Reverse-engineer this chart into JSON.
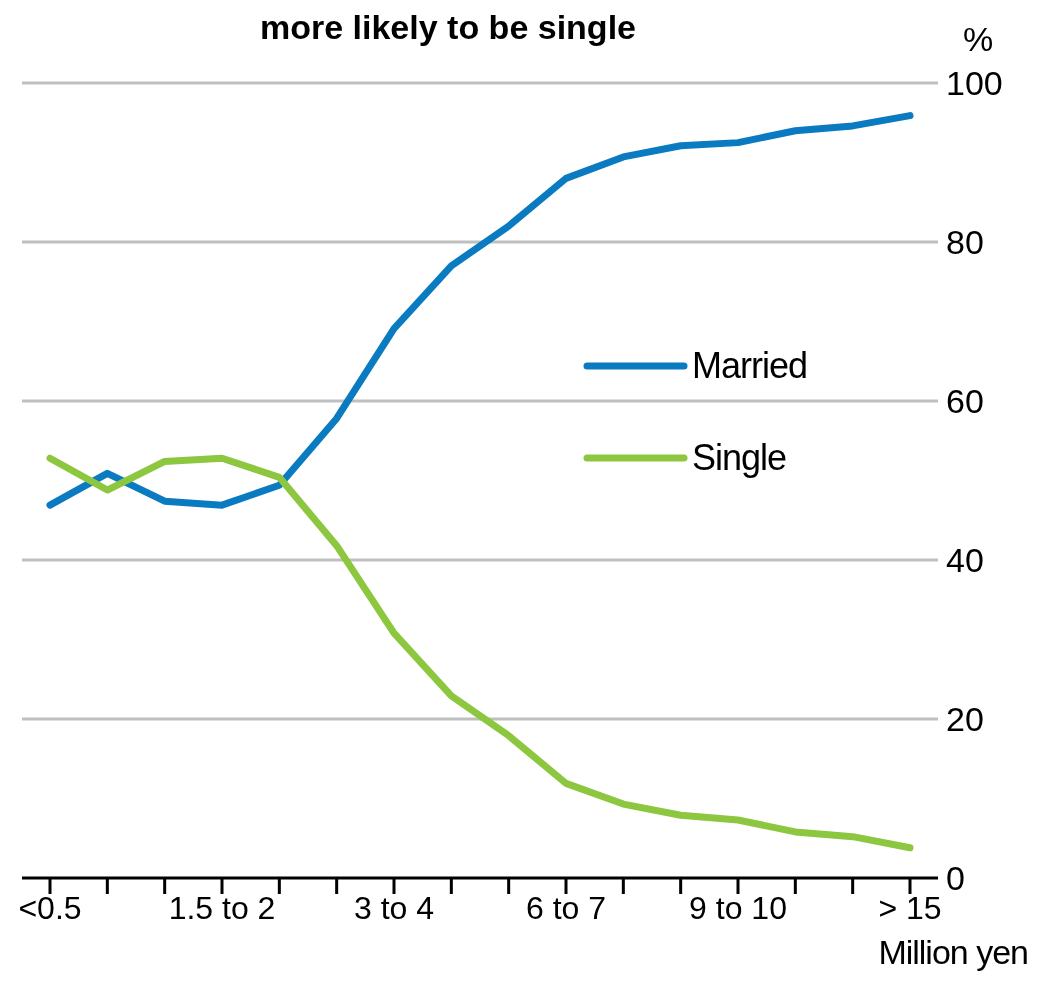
{
  "chart_data": {
    "type": "line",
    "title": "more likely to be single",
    "ylabel": "%",
    "xlabel": "Million yen",
    "categories": [
      "<0.5",
      null,
      null,
      "1.5 to 2",
      null,
      null,
      "3 to 4",
      null,
      null,
      "6 to 7",
      null,
      null,
      "9 to 10",
      null,
      null,
      "> 15"
    ],
    "series": [
      {
        "name": "Married",
        "color": "#0a7bc1",
        "values": [
          46.9,
          50.9,
          47.4,
          46.9,
          49.4,
          57.8,
          69.1,
          77.0,
          82.0,
          88.0,
          90.7,
          92.1,
          92.5,
          94.0,
          94.6,
          95.9
        ]
      },
      {
        "name": "Single",
        "color": "#8dc63f",
        "values": [
          52.8,
          48.8,
          52.4,
          52.8,
          50.4,
          41.8,
          30.8,
          22.9,
          17.9,
          11.9,
          9.3,
          7.9,
          7.3,
          5.8,
          5.2,
          3.8
        ]
      }
    ],
    "ylim": [
      0,
      100
    ],
    "yticks": [
      0,
      20,
      40,
      60,
      80,
      100
    ],
    "grid": "y",
    "legend": "right",
    "marker": "none",
    "line_style": "solid"
  }
}
